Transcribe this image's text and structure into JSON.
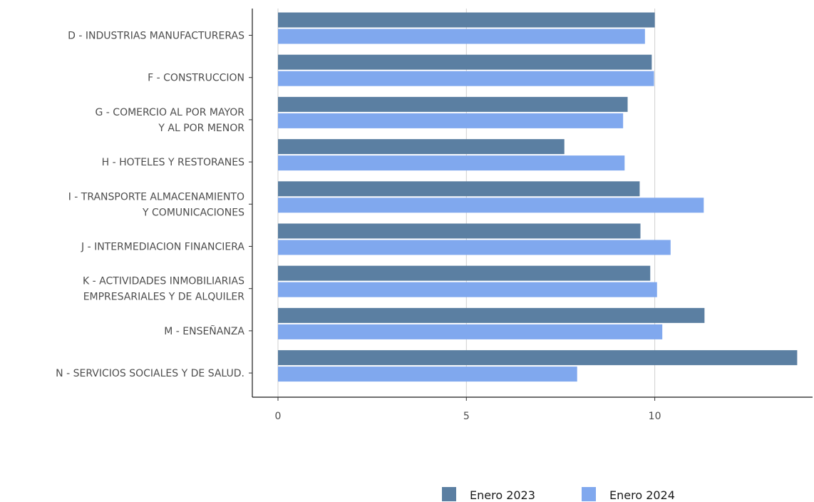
{
  "chart_data": {
    "type": "bar",
    "orientation": "horizontal",
    "categories": [
      [
        "D - INDUSTRIAS  MANUFACTURERAS"
      ],
      [
        "F - CONSTRUCCION"
      ],
      [
        "G - COMERCIO AL POR MAYOR",
        "Y AL POR  MENOR"
      ],
      [
        "H - HOTELES Y RESTORANES"
      ],
      [
        "I - TRANSPORTE ALMACENAMIENTO",
        "Y COMUNICACIONES"
      ],
      [
        "J - INTERMEDIACION FINANCIERA"
      ],
      [
        "K - ACTIVIDADES INMOBILIARIAS",
        "EMPRESARIALES Y DE ALQUILER"
      ],
      [
        "M - ENSEÑANZA"
      ],
      [
        "N - SERVICIOS SOCIALES Y DE SALUD."
      ]
    ],
    "series": [
      {
        "name": "Enero 2023",
        "color": "#5b7fa2",
        "values": [
          10.0,
          9.92,
          9.28,
          7.6,
          9.6,
          9.62,
          9.88,
          11.32,
          13.78
        ]
      },
      {
        "name": "Enero 2024",
        "color": "#80a8ee",
        "values": [
          9.74,
          9.98,
          9.16,
          9.2,
          11.3,
          10.42,
          10.06,
          10.2,
          7.94
        ]
      }
    ],
    "xlim": [
      0,
      14
    ],
    "xticks": [
      0,
      5,
      10
    ],
    "grid": true,
    "legend_position": "bottom-right",
    "title": "",
    "xlabel": "",
    "ylabel": ""
  }
}
